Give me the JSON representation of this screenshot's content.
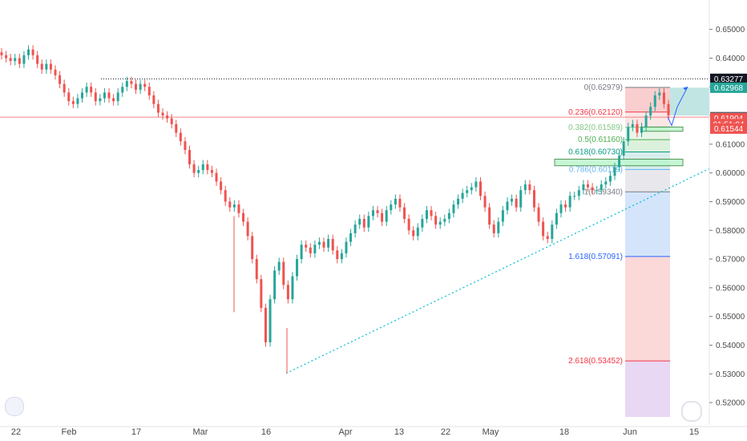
{
  "chart_data": {
    "type": "candlestick",
    "y_axis": {
      "ylim": [
        0.515,
        0.658
      ],
      "tick_labels": [
        "0.65000",
        "0.64000",
        "0.63000",
        "0.62000",
        "0.61000",
        "0.60000",
        "0.59000",
        "0.58000",
        "0.57000",
        "0.56000",
        "0.55000",
        "0.54000",
        "0.53000",
        "0.52000"
      ]
    },
    "x_axis": {
      "tick_labels": [
        "22",
        "Feb",
        "17",
        "Mar",
        "16",
        "Apr",
        "13",
        "22",
        "May",
        "18",
        "Jun",
        "15"
      ]
    },
    "price_tags": [
      {
        "label": "0.63277",
        "value": 0.63277,
        "color": "#131722"
      },
      {
        "label": "0.62968",
        "value": 0.62968,
        "color": "#26a69a"
      },
      {
        "label": "0.61942",
        "value": 0.61942,
        "color": "#5d606b"
      },
      {
        "label": "0.61904",
        "value": 0.61904,
        "color": "#ef5350"
      },
      {
        "label": "01:51:04",
        "value": 0.617,
        "color": "#ef5350"
      },
      {
        "label": "0.61544",
        "value": 0.61544,
        "color": "#ef5350"
      }
    ],
    "fib_levels": [
      {
        "label": "0(0.62979)",
        "value": 0.62979,
        "color": "#787b86"
      },
      {
        "label": "0.236(0.62120)",
        "value": 0.6212,
        "color": "#f23645"
      },
      {
        "label": "0.382(0.61589)",
        "value": 0.61589,
        "color": "#81c784"
      },
      {
        "label": "0.5(0.61160)",
        "value": 0.6116,
        "color": "#4caf50"
      },
      {
        "label": "0.618(0.60730)",
        "value": 0.6073,
        "color": "#089981"
      },
      {
        "label": "0.786(0.60119)",
        "value": 0.60119,
        "color": "#64b5f6"
      },
      {
        "label": "1(0.59340)",
        "value": 0.5934,
        "color": "#787b86"
      },
      {
        "label": "1.618(0.57091)",
        "value": 0.57091,
        "color": "#2962ff"
      },
      {
        "label": "2.618(0.53452)",
        "value": 0.53452,
        "color": "#f23645"
      }
    ],
    "fib_zones": [
      {
        "from": 0.62979,
        "to": 0.6212,
        "color": "#f8c9c9"
      },
      {
        "from": 0.6212,
        "to": 0.61589,
        "color": "#fbe3e3"
      },
      {
        "from": 0.61589,
        "to": 0.6116,
        "color": "#e6f4e6"
      },
      {
        "from": 0.6116,
        "to": 0.6073,
        "color": "#d8efd8"
      },
      {
        "from": 0.6073,
        "to": 0.60119,
        "color": "#d3ecea"
      },
      {
        "from": 0.60119,
        "to": 0.5934,
        "color": "#e5e6ea"
      },
      {
        "from": 0.5934,
        "to": 0.57091,
        "color": "#cfe2fb"
      },
      {
        "from": 0.57091,
        "to": 0.53452,
        "color": "#fbd5d5"
      },
      {
        "from": 0.53452,
        "to": 0.515,
        "color": "#e6d4f2"
      }
    ],
    "dotted_resistance": 0.63277,
    "horizontal_red_line": 0.61942,
    "trendline": {
      "from": [
        0.5302,
        "Mar 20"
      ],
      "to": [
        0.6015,
        "Jun 16"
      ]
    },
    "closes": [
      0.641,
      0.64,
      0.639,
      0.64,
      0.638,
      0.641,
      0.643,
      0.641,
      0.638,
      0.636,
      0.638,
      0.636,
      0.634,
      0.631,
      0.628,
      0.625,
      0.624,
      0.626,
      0.628,
      0.63,
      0.628,
      0.625,
      0.626,
      0.628,
      0.626,
      0.625,
      0.628,
      0.63,
      0.632,
      0.631,
      0.629,
      0.631,
      0.63,
      0.627,
      0.624,
      0.621,
      0.62,
      0.619,
      0.617,
      0.614,
      0.611,
      0.608,
      0.603,
      0.6,
      0.601,
      0.603,
      0.601,
      0.6,
      0.597,
      0.594,
      0.59,
      0.588,
      0.589,
      0.586,
      0.583,
      0.578,
      0.57,
      0.563,
      0.553,
      0.541,
      0.556,
      0.566,
      0.569,
      0.561,
      0.556,
      0.564,
      0.57,
      0.575,
      0.574,
      0.572,
      0.575,
      0.576,
      0.574,
      0.577,
      0.573,
      0.57,
      0.572,
      0.576,
      0.579,
      0.582,
      0.584,
      0.581,
      0.585,
      0.587,
      0.586,
      0.583,
      0.587,
      0.589,
      0.591,
      0.588,
      0.584,
      0.58,
      0.578,
      0.581,
      0.584,
      0.587,
      0.585,
      0.582,
      0.583,
      0.584,
      0.586,
      0.589,
      0.591,
      0.593,
      0.594,
      0.595,
      0.597,
      0.592,
      0.588,
      0.582,
      0.579,
      0.583,
      0.587,
      0.59,
      0.591,
      0.588,
      0.594,
      0.596,
      0.594,
      0.588,
      0.583,
      0.578,
      0.577,
      0.582,
      0.586,
      0.589,
      0.588,
      0.592,
      0.592,
      0.594,
      0.596,
      0.595,
      0.594,
      0.594,
      0.596,
      0.597,
      0.599,
      0.602,
      0.606,
      0.611,
      0.616,
      0.617,
      0.614,
      0.616,
      0.62,
      0.623,
      0.627,
      0.628,
      0.624,
      0.62
    ]
  },
  "ui": {
    "logo": "tradingview-logo",
    "avatar_icon": "user-avatar-icon"
  }
}
